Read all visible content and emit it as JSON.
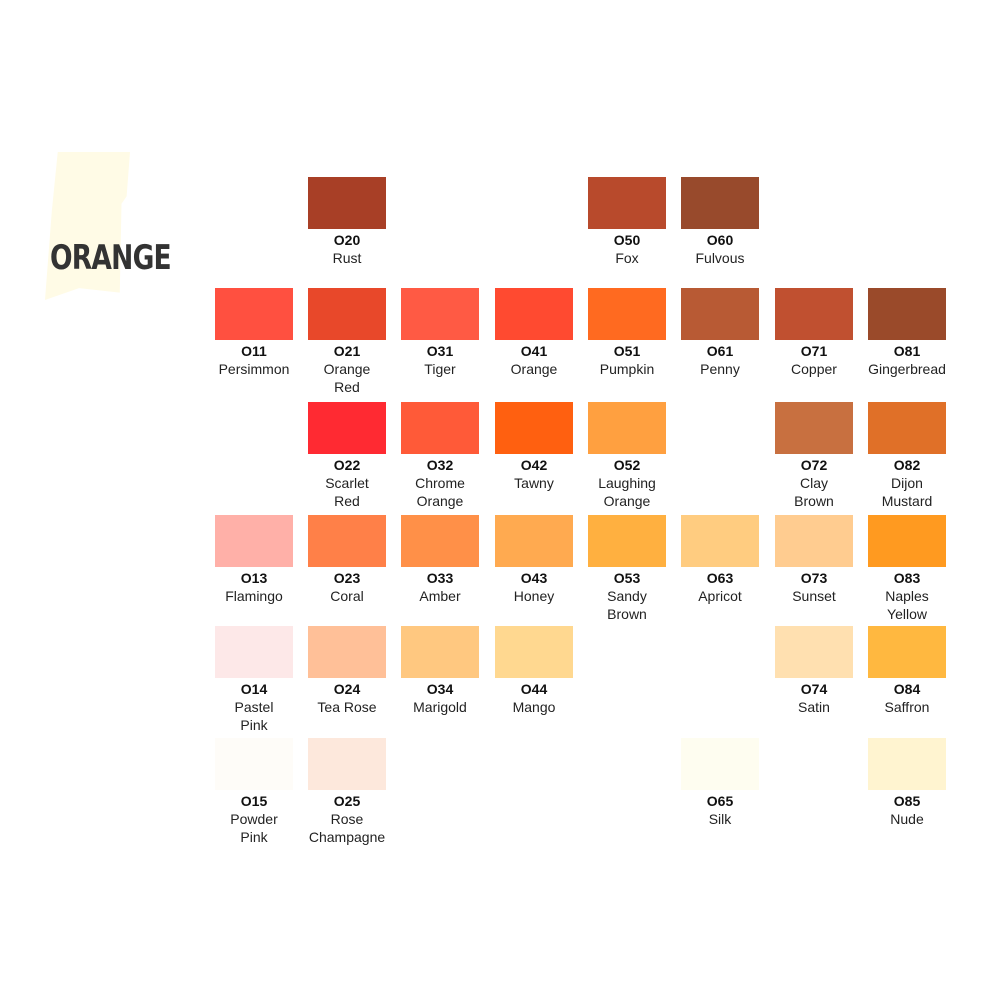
{
  "title": "ORANGE",
  "rows": [
    [
      null,
      {
        "code": "O20",
        "name": "Rust",
        "color": "#a83f26"
      },
      null,
      null,
      {
        "code": "O50",
        "name": "Fox",
        "color": "#b84a2c"
      },
      {
        "code": "O60",
        "name": "Fulvous",
        "color": "#984a2c"
      },
      null,
      null
    ],
    [
      {
        "code": "O11",
        "name": "Persimmon",
        "color": "#ff5040"
      },
      {
        "code": "O21",
        "name": "Orange\nRed",
        "color": "#e8482a"
      },
      {
        "code": "O31",
        "name": "Tiger",
        "color": "#ff5a44"
      },
      {
        "code": "O41",
        "name": "Orange",
        "color": "#ff4a30"
      },
      {
        "code": "O51",
        "name": "Pumpkin",
        "color": "#ff6a20"
      },
      {
        "code": "O61",
        "name": "Penny",
        "color": "#b85a34"
      },
      {
        "code": "O71",
        "name": "Copper",
        "color": "#c05030"
      },
      {
        "code": "O81",
        "name": "Gingerbread",
        "color": "#9a4a2a"
      }
    ],
    [
      null,
      {
        "code": "O22",
        "name": "Scarlet\nRed",
        "color": "#ff2a32"
      },
      {
        "code": "O32",
        "name": "Chrome\nOrange",
        "color": "#ff5a38"
      },
      {
        "code": "O42",
        "name": "Tawny",
        "color": "#ff6010"
      },
      {
        "code": "O52",
        "name": "Laughing\nOrange",
        "color": "#ffa040"
      },
      null,
      {
        "code": "O72",
        "name": "Clay\nBrown",
        "color": "#c87040"
      },
      {
        "code": "O82",
        "name": "Dijon\nMustard",
        "color": "#e07028"
      }
    ],
    [
      {
        "code": "O13",
        "name": "Flamingo",
        "color": "#ffb0a8"
      },
      {
        "code": "O23",
        "name": "Coral",
        "color": "#ff8048"
      },
      {
        "code": "O33",
        "name": "Amber",
        "color": "#ff9048"
      },
      {
        "code": "O43",
        "name": "Honey",
        "color": "#ffaa50"
      },
      {
        "code": "O53",
        "name": "Sandy\nBrown",
        "color": "#ffb040"
      },
      {
        "code": "O63",
        "name": "Apricot",
        "color": "#ffcc80"
      },
      {
        "code": "O73",
        "name": "Sunset",
        "color": "#ffcc90"
      },
      {
        "code": "O83",
        "name": "Naples\nYellow",
        "color": "#ff9a20"
      }
    ],
    [
      {
        "code": "O14",
        "name": "Pastel\nPink",
        "color": "#fde8e8"
      },
      {
        "code": "O24",
        "name": "Tea Rose",
        "color": "#ffc098"
      },
      {
        "code": "O34",
        "name": "Marigold",
        "color": "#ffc880"
      },
      {
        "code": "O44",
        "name": "Mango",
        "color": "#ffd890"
      },
      null,
      null,
      {
        "code": "O74",
        "name": "Satin",
        "color": "#ffe0b0"
      },
      {
        "code": "O84",
        "name": "Saffron",
        "color": "#ffb840"
      }
    ],
    [
      {
        "code": "O15",
        "name": "Powder\nPink",
        "color": "#fefcf8"
      },
      {
        "code": "O25",
        "name": "Rose\nChampagne",
        "color": "#fde8dc"
      },
      null,
      null,
      null,
      {
        "code": "O65",
        "name": "Silk",
        "color": "#fefdf0"
      },
      null,
      {
        "code": "O85",
        "name": "Nude",
        "color": "#fff4d0"
      }
    ]
  ]
}
